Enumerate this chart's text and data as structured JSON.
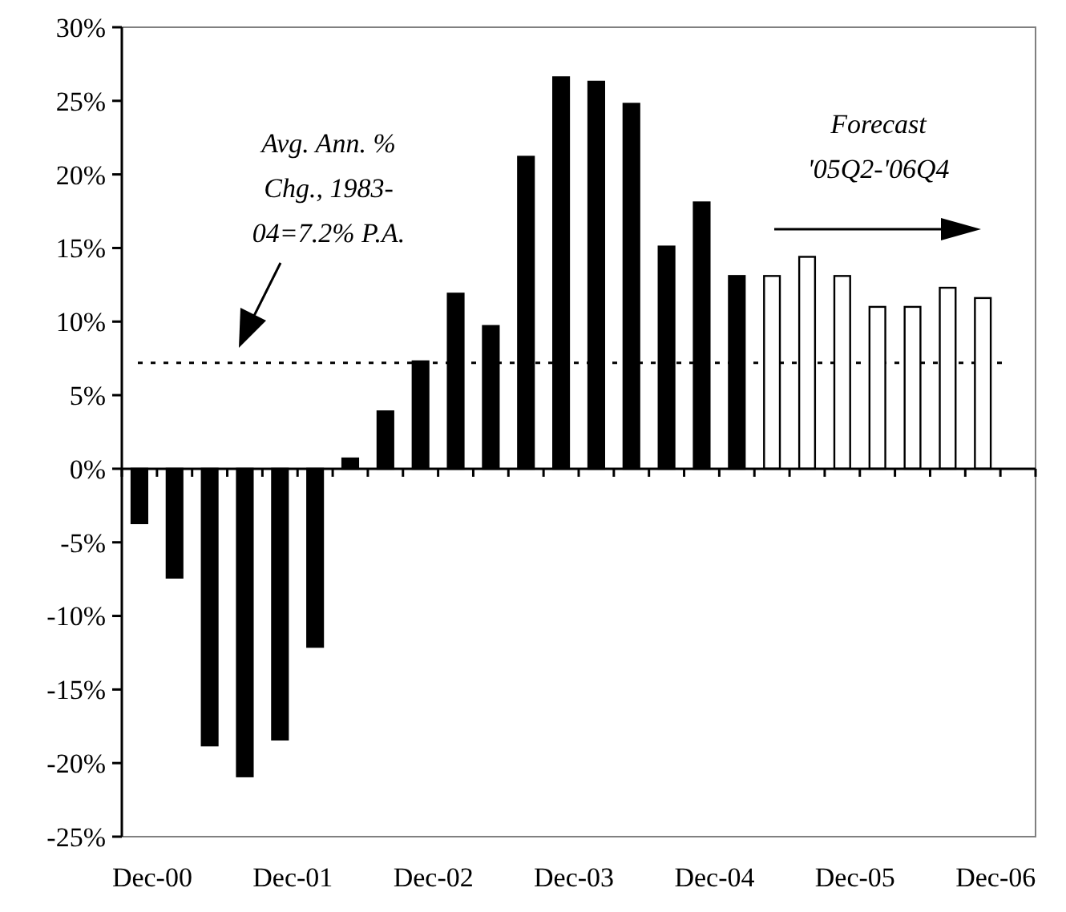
{
  "chart_data": {
    "type": "bar",
    "categories": [
      "Dec-00",
      null,
      null,
      null,
      "Dec-01",
      null,
      null,
      null,
      "Dec-02",
      null,
      null,
      null,
      "Dec-03",
      null,
      null,
      null,
      "Dec-04",
      null,
      null,
      null,
      "Dec-05",
      null,
      null,
      null,
      "Dec-06",
      null
    ],
    "values": [
      -3.7,
      -7.4,
      -18.8,
      -20.9,
      -18.4,
      -12.1,
      0.7,
      3.9,
      7.3,
      11.9,
      9.7,
      21.2,
      26.6,
      26.3,
      24.8,
      15.1,
      18.1,
      13.1,
      13.1,
      14.4,
      13.1,
      11.0,
      11.0,
      12.3,
      11.6,
      null
    ],
    "colors": [
      "#000000",
      "#000000",
      "#000000",
      "#000000",
      "#000000",
      "#000000",
      "#000000",
      "#000000",
      "#000000",
      "#000000",
      "#000000",
      "#000000",
      "#000000",
      "#000000",
      "#000000",
      "#000000",
      "#000000",
      "#000000",
      "#ffffff",
      "#ffffff",
      "#ffffff",
      "#ffffff",
      "#ffffff",
      "#ffffff",
      "#ffffff",
      null
    ],
    "ylim": [
      -25,
      30
    ],
    "yticks": [
      {
        "value": -25,
        "label": "-25%"
      },
      {
        "value": -20,
        "label": "-20%"
      },
      {
        "value": -15,
        "label": "-15%"
      },
      {
        "value": -10,
        "label": "-10%"
      },
      {
        "value": -5,
        "label": "-5%"
      },
      {
        "value": 0,
        "label": "0%"
      },
      {
        "value": 5,
        "label": "5%"
      },
      {
        "value": 10,
        "label": "10%"
      },
      {
        "value": 15,
        "label": "15%"
      },
      {
        "value": 20,
        "label": "20%"
      },
      {
        "value": 25,
        "label": "25%"
      },
      {
        "value": 30,
        "label": "30%"
      }
    ],
    "ref_lines": [
      {
        "axis": "y",
        "value": 7.2,
        "color": "#000000",
        "line_style": "dotted"
      }
    ],
    "annotations": [
      "Avg. Ann. %\nChg., 1983-\n04=7.2% P.A.",
      "Forecast\n'05Q2-'06Q4"
    ]
  }
}
